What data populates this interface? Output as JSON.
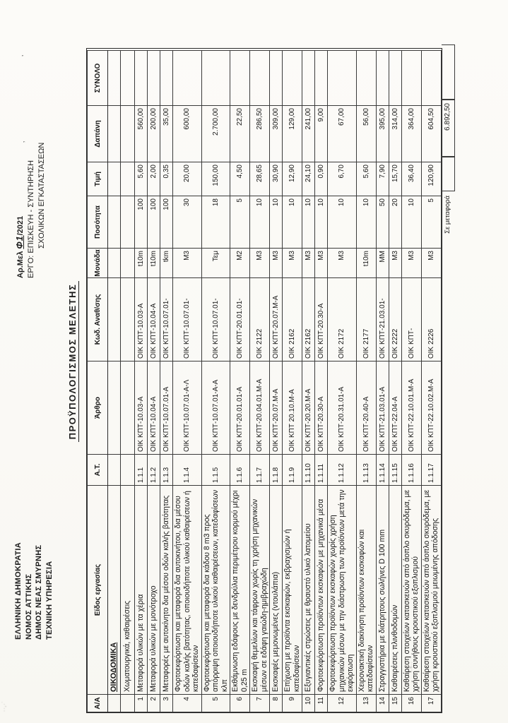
{
  "page": {
    "letterhead_left": {
      "line1": "ΕΛΛΗΝΙΚΗ ΔΗΜΟΚΡΑΤΙΑ",
      "line2": "ΝΟΜΟΣ ΑΤΤΙΚΗΣ",
      "line3": "ΔΗΜΟΣ ΝΕΑΣ ΣΜΥΡΝΗΣ",
      "line4": "ΤΕΧΝΙΚΗ ΥΠΗΡΕΣΙΑ"
    },
    "meta": {
      "study_no_label": "Αρ.Μελ ",
      "study_no_handwritten": "Φ1",
      "study_no_rest": "/2021",
      "project_line1": "ΕΡΓΟ:  ΕΠΙΣΚΕΥΗ - ΣΥΝΤΗΡΗΣΗ",
      "project_line2": "ΣΧΟΛΙΚΩΝ ΕΓΚΑΤΑΣΤΑΣΕΩΝ"
    },
    "title": "ΠΡΟΫΠΟΛΟΓΙΣΜΟΣ  ΜΕΛΕΤΗΣ",
    "artifacts": {
      "speck1": "’",
      "speck2": "‚",
      "corner_smudge": "··‚·˙",
      "left_smudge": "ι.ε.: ·"
    }
  },
  "table": {
    "headers": {
      "aa": "Α/Α",
      "desc": "Είδος εργασίας",
      "at": "Α.Τ.",
      "arthro": "Άρθρο",
      "kod": "Κωδ. Αναθ/σης",
      "monada": "Μονάδα",
      "posotita": "Ποσότητα",
      "timi": "Τιμή",
      "dapani": "Δαπάνη",
      "synolo": "ΣΥΝΟΛΟ"
    },
    "section": "ΟΙΚΟΔΟΜΙΚΑ",
    "subsection": "Χωματουργικά, καθαιρέσεις",
    "rows": [
      {
        "aa": "1",
        "desc": "Μεταφορά υλικών με τα χέρια",
        "at": "1.1.1",
        "arthro": "ΟΙΚ ΚΠΤ-10.03-Α",
        "kod": "ΟΙΚ ΚΠΤ-10.03-Α",
        "monada": "t10m",
        "posotita": "100",
        "timi": "5,60",
        "dapani": "560,00",
        "synolo": ""
      },
      {
        "aa": "2",
        "desc": "Μεταφορά υλικών με μονότροχο",
        "at": "1.1.2",
        "arthro": "ΟΙΚ ΚΠΤ-10.04-Α",
        "kod": "ΟΙΚ ΚΠΤ-10.04-Α",
        "monada": "t10m",
        "posotita": "100",
        "timi": "2,00",
        "dapani": "200,00",
        "synolo": ""
      },
      {
        "aa": "3",
        "desc": "Μεταφορές με αυτοκίνητο δια μέσου οδών καλής βατότητας",
        "at": "1.1.3",
        "arthro": "ΟΙΚ ΚΠΤ-10.07.01-Α",
        "kod": "ΟΙΚ ΚΠΤ-10.07.01-",
        "monada": "tkm",
        "posotita": "100",
        "timi": "0,35",
        "dapani": "35,00",
        "synolo": ""
      },
      {
        "aa": "4",
        "desc": "Φορτοεκφόρτωση και μεταφορά δια αυτοκινήτου, δια μέσου οδών καλής βατότητας,  οποιουδήποτε υλικού καθαιρέσεων ή κατεδαφίσεων",
        "at": "1.1.4",
        "arthro": "ΟΙΚ ΚΠΤ-10.07.01-Α-Λ",
        "kod": "ΟΙΚ ΚΠΤ-10.07.01-",
        "monada": "Μ3",
        "posotita": "30",
        "timi": "20,00",
        "dapani": "600,00",
        "synolo": ""
      },
      {
        "aa": "5",
        "desc": "Φορτοεκφόρτωση και μεταφορά δια κάδου 8 m3 προς απόρριψη οποιουδήποτε υλικού καθαιρέσεων, κατεδαφίσεων κλπ",
        "at": "1.1.5",
        "arthro": "ΟΙΚ ΚΠΤ-10.07.01-Α-Α",
        "kod": "ΟΙΚ ΚΠΤ-10.07.01-",
        "monada": "Τεμ",
        "posotita": "18",
        "timi": "150,00",
        "dapani": "2.700,00",
        "synolo": ""
      },
      {
        "aa": "6",
        "desc": "Εκθάμνωση εδάφους με δενδρύλια περιμέτρου κορμού μέχρι 0,25 m",
        "at": "1.1.6",
        "arthro": "ΟΙΚ ΚΠΤ-20.01.01-Α",
        "kod": "ΟΙΚ ΚΠΤ-20.01.01-",
        "monada": "Μ2",
        "posotita": "5",
        "timi": "4,50",
        "dapani": "22,50",
        "synolo": ""
      },
      {
        "aa": "7",
        "desc": "Εκσκαφή θεμελίων και τάφρων χωρίς τη χρήση μηχανικών μέσων σε εδάφη γαιώδη-ημιβραχώδη",
        "at": "1.1.7",
        "arthro": "ΟΙΚ ΚΠΤ-20.04.01.Μ-Α",
        "kod": "ΟΙΚ 2122",
        "monada": "Μ3",
        "posotita": "10",
        "timi": "28,65",
        "dapani": "286,50",
        "synolo": ""
      },
      {
        "aa": "8",
        "desc": "Εκσκαφές μεμονωμένες (ντουλάπια)",
        "at": "1.1.8",
        "arthro": "ΟΙΚ ΚΠΤ-20.07.Μ-Α",
        "kod": "ΟΙΚ ΚΠΤ-20.07.Μ-Α",
        "monada": "Μ3",
        "posotita": "10",
        "timi": "30,90",
        "dapani": "309,00",
        "synolo": ""
      },
      {
        "aa": "9",
        "desc": "Επίχωση με προϊόντα εκσκαφών, εκβραχισμών ή κατεδαφίσεων",
        "at": "1.1.9",
        "arthro": "ΟΙΚ ΚΠΤ 20.10.Μ-Α",
        "kod": "ΟΙΚ 2162",
        "monada": "Μ3",
        "posotita": "10",
        "timi": "12,90",
        "dapani": "129,00",
        "synolo": ""
      },
      {
        "aa": "10",
        "desc": "Εξυγιαντικές στρώσεις με θραυστό υλικό λατομείου",
        "at": "1.1.10",
        "arthro": "ΟΙΚ ΚΠΤ-20.20.Μ-Α",
        "kod": "ΟΙΚ 2162",
        "monada": "Μ3",
        "posotita": "10",
        "timi": "24,10",
        "dapani": "241,00",
        "synolo": ""
      },
      {
        "aa": "11",
        "desc": "Φορτοεκφόρτωση προϊόντων εκσκαφών με μηχανικά μέσα",
        "at": "1.1.11",
        "arthro": "ΟΙΚ ΚΠΤ-20.30-Α",
        "kod": "ΟΙΚ ΚΠΤ-20.30-Α",
        "monada": "Μ3",
        "posotita": "10",
        "timi": "0,90",
        "dapani": "9,00",
        "synolo": ""
      },
      {
        "aa": "12",
        "desc": "Φορτοεκφόρτωση προϊόντων εκσκαφών χωρίς χρήση μηχανικών μέσων με την διάστρωση των προϊόντων μετά την εκφόρτωση",
        "at": "1.1.12",
        "arthro": "ΟΙΚ ΚΠΤ-20.31.01-Α",
        "kod": "ΟΙΚ 2172",
        "monada": "Μ3",
        "posotita": "10",
        "timi": "6,70",
        "dapani": "67,00",
        "synolo": ""
      },
      {
        "aa": "13",
        "desc": "Χειρονακτική διακίνηση προϊόντων εκσκαφών και κατεδαφίσεων",
        "at": "1.1.13",
        "arthro": "ΟΙΚ ΚΠΤ-20.40-Α",
        "kod": "ΟΙΚ 2177",
        "monada": "t10m",
        "posotita": "10",
        "timi": "5,60",
        "dapani": "56,00",
        "synolo": ""
      },
      {
        "aa": "14",
        "desc": "Στραγγιστήρια με διάτρητους σωλήνες D 100 mm",
        "at": "1.1.14",
        "arthro": "ΟΙΚ ΚΠΤ-21.03.01-Α",
        "kod": "ΟΙΚ ΚΠΤ-21.03.01-",
        "monada": "ΜΜ",
        "posotita": "50",
        "timi": "7,90",
        "dapani": "395,00",
        "synolo": ""
      },
      {
        "aa": "15",
        "desc": "Καθαιρέσεις πλινθοδομών",
        "at": "1.1.15",
        "arthro": "ΟΙΚ ΚΠΤ-22.04-Α",
        "kod": "ΟΙΚ 2222",
        "monada": "Μ3",
        "posotita": "20",
        "timi": "15,70",
        "dapani": "314,00",
        "synolo": ""
      },
      {
        "aa": "16",
        "desc": "Καθαίρεση στοιχείων κατασκευών από άοπλο σκυρόδεμα,  με  χρήση συνήθους κρουστικού εξοπλισμού",
        "at": "1.1.16",
        "arthro": "ΟΙΚ ΚΠΤ-22.10.01.Μ-Α",
        "kod": "ΟΙΚ ΚΠΤ-",
        "monada": "Μ3",
        "posotita": "10",
        "timi": "36,40",
        "dapani": "364,00",
        "synolo": ""
      },
      {
        "aa": "17",
        "desc": "Καθαίρεση στοιχείων κατασκευών από άοπλο σκυρόδεμα, με χρήση κρουστικού εξοπλισμού μειωμένης απόδοσης",
        "at": "1.1.17",
        "arthro": "ΟΙΚ ΚΠΤ-22.10.02.Μ-Α",
        "kod": "ΟΙΚ 2226",
        "monada": "Μ3",
        "posotita": "5",
        "timi": "120,90",
        "dapani": "604,50",
        "synolo": ""
      }
    ],
    "footer": {
      "label": "Σε μεταφορά",
      "value": "6.892,50"
    }
  }
}
